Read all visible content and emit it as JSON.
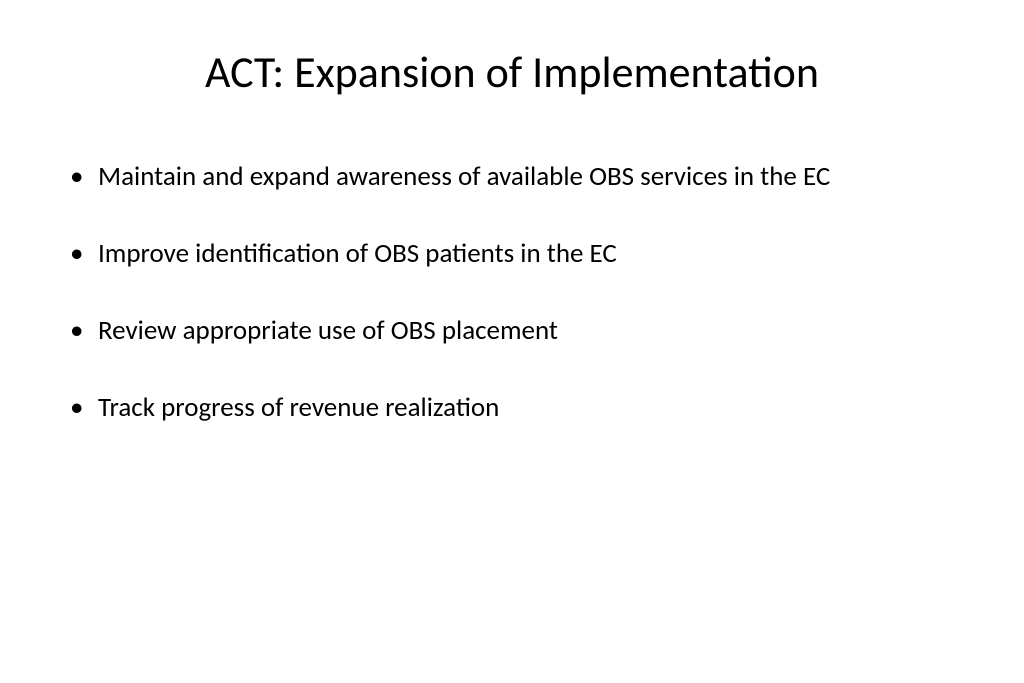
{
  "slide": {
    "title": "ACT: Expansion of Implementation",
    "bullets": [
      "Maintain and expand awareness of available OBS services in the EC",
      "Improve identification of OBS patients in the EC",
      "Review appropriate use of OBS placement",
      "Track progress of revenue realization"
    ]
  },
  "styling": {
    "background_color": "#ffffff",
    "text_color": "#000000",
    "title_fontsize": 44,
    "bullet_fontsize": 27,
    "font_family": "Calibri, Arial, sans-serif"
  }
}
